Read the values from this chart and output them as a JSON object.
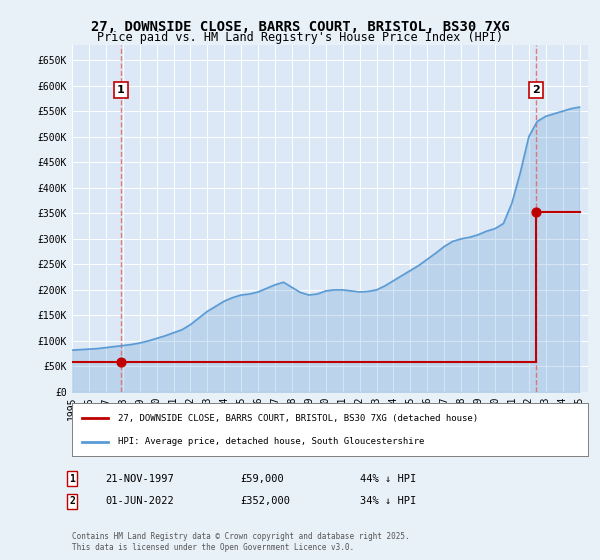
{
  "title": "27, DOWNSIDE CLOSE, BARRS COURT, BRISTOL, BS30 7XG",
  "subtitle": "Price paid vs. HM Land Registry's House Price Index (HPI)",
  "ylabel": "",
  "background_color": "#e8f0f8",
  "plot_bg_color": "#dce8f5",
  "sale1_date": "21-NOV-1997",
  "sale1_price": 59000,
  "sale1_label": "44% ↓ HPI",
  "sale2_date": "01-JUN-2022",
  "sale2_price": 352000,
  "sale2_label": "34% ↓ HPI",
  "legend_line1": "27, DOWNSIDE CLOSE, BARRS COURT, BRISTOL, BS30 7XG (detached house)",
  "legend_line2": "HPI: Average price, detached house, South Gloucestershire",
  "footer": "Contains HM Land Registry data © Crown copyright and database right 2025.\nThis data is licensed under the Open Government Licence v3.0.",
  "hpi_color": "#5b9bd5",
  "sale_color": "#c00000",
  "dashed_line_color": "#e06060",
  "ylim_max": 680000,
  "ylim_min": 0,
  "hpi_years": [
    1995,
    1995.5,
    1996,
    1996.5,
    1997,
    1997.5,
    1998,
    1998.5,
    1999,
    1999.5,
    2000,
    2000.5,
    2001,
    2001.5,
    2002,
    2002.5,
    2003,
    2003.5,
    2004,
    2004.5,
    2005,
    2005.5,
    2006,
    2006.5,
    2007,
    2007.5,
    2008,
    2008.5,
    2009,
    2009.5,
    2010,
    2010.5,
    2011,
    2011.5,
    2012,
    2012.5,
    2013,
    2013.5,
    2014,
    2014.5,
    2015,
    2015.5,
    2016,
    2016.5,
    2017,
    2017.5,
    2018,
    2018.5,
    2019,
    2019.5,
    2020,
    2020.5,
    2021,
    2021.5,
    2022,
    2022.5,
    2023,
    2023.5,
    2024,
    2024.5,
    2025
  ],
  "hpi_values": [
    82000,
    83000,
    84000,
    85000,
    87000,
    89000,
    91000,
    93000,
    96000,
    100000,
    105000,
    110000,
    116000,
    122000,
    132000,
    145000,
    158000,
    168000,
    178000,
    185000,
    190000,
    192000,
    196000,
    203000,
    210000,
    215000,
    205000,
    195000,
    190000,
    192000,
    198000,
    200000,
    200000,
    198000,
    196000,
    197000,
    200000,
    208000,
    218000,
    228000,
    238000,
    248000,
    260000,
    272000,
    285000,
    295000,
    300000,
    303000,
    308000,
    315000,
    320000,
    330000,
    370000,
    430000,
    500000,
    530000,
    540000,
    545000,
    550000,
    555000,
    558000
  ],
  "sale_years": [
    1997.9,
    2022.42
  ],
  "sale_prices": [
    59000,
    352000
  ],
  "xtick_labels": [
    "1995",
    "1996",
    "1997",
    "1998",
    "1999",
    "2000",
    "2001",
    "2002",
    "2003",
    "2004",
    "2005",
    "2006",
    "2007",
    "2008",
    "2009",
    "2010",
    "2011",
    "2012",
    "2013",
    "2014",
    "2015",
    "2016",
    "2017",
    "2018",
    "2019",
    "2020",
    "2021",
    "2022",
    "2023",
    "2024",
    "2025"
  ],
  "xtick_positions": [
    1995,
    1996,
    1997,
    1998,
    1999,
    2000,
    2001,
    2002,
    2003,
    2004,
    2005,
    2006,
    2007,
    2008,
    2009,
    2010,
    2011,
    2012,
    2013,
    2014,
    2015,
    2016,
    2017,
    2018,
    2019,
    2020,
    2021,
    2022,
    2023,
    2024,
    2025
  ],
  "ytick_labels": [
    "£0",
    "£50K",
    "£100K",
    "£150K",
    "£200K",
    "£250K",
    "£300K",
    "£350K",
    "£400K",
    "£450K",
    "£500K",
    "£550K",
    "£600K",
    "£650K"
  ],
  "ytick_positions": [
    0,
    50000,
    100000,
    150000,
    200000,
    250000,
    300000,
    350000,
    400000,
    450000,
    500000,
    550000,
    600000,
    650000
  ]
}
